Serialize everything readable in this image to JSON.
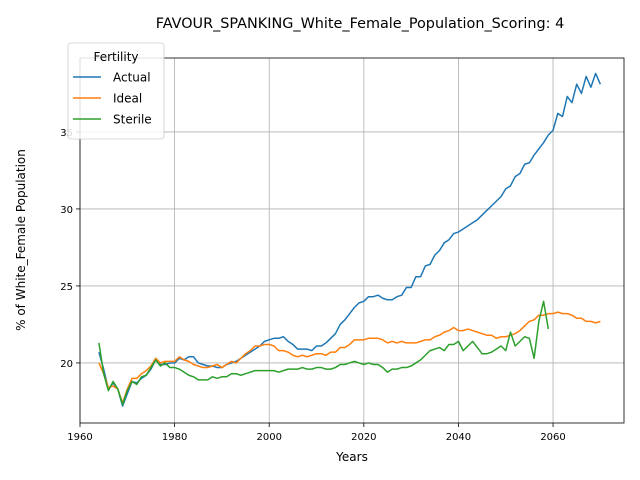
{
  "chart_data": {
    "type": "line",
    "title": "FAVOUR_SPANKING_White_Female_Population_Scoring: 4",
    "xlabel": "Years",
    "ylabel": "% of White_Female Population",
    "xlim": [
      1960,
      2075
    ],
    "ylim": [
      16.1,
      39.8
    ],
    "xticks": [
      1960,
      1980,
      2000,
      2020,
      2040,
      2060
    ],
    "yticks": [
      20,
      25,
      30,
      35
    ],
    "grid": true,
    "legend": {
      "title": "Fertility",
      "position": "upper-left"
    },
    "series": [
      {
        "name": "Actual",
        "color": "#1f77b4",
        "points": [
          [
            1964,
            20.7
          ],
          [
            1965,
            19.6
          ],
          [
            1966,
            18.3
          ],
          [
            1967,
            18.7
          ],
          [
            1968,
            18.3
          ],
          [
            1969,
            17.2
          ],
          [
            1970,
            18.0
          ],
          [
            1971,
            18.8
          ],
          [
            1972,
            18.7
          ],
          [
            1973,
            19.0
          ],
          [
            1974,
            19.2
          ],
          [
            1975,
            19.6
          ],
          [
            1976,
            20.2
          ],
          [
            1977,
            19.9
          ],
          [
            1978,
            19.9
          ],
          [
            1979,
            20.0
          ],
          [
            1980,
            20.0
          ],
          [
            1981,
            20.3
          ],
          [
            1982,
            20.2
          ],
          [
            1983,
            20.4
          ],
          [
            1984,
            20.4
          ],
          [
            1985,
            20.0
          ],
          [
            1986,
            19.9
          ],
          [
            1987,
            19.8
          ],
          [
            1988,
            19.8
          ],
          [
            1989,
            19.7
          ],
          [
            1990,
            19.7
          ],
          [
            1991,
            19.9
          ],
          [
            1992,
            20.0
          ],
          [
            1993,
            20.1
          ],
          [
            1994,
            20.3
          ],
          [
            1995,
            20.5
          ],
          [
            1996,
            20.7
          ],
          [
            1997,
            20.9
          ],
          [
            1998,
            21.1
          ],
          [
            1999,
            21.4
          ],
          [
            2000,
            21.5
          ],
          [
            2001,
            21.6
          ],
          [
            2002,
            21.6
          ],
          [
            2003,
            21.7
          ],
          [
            2004,
            21.4
          ],
          [
            2005,
            21.2
          ],
          [
            2006,
            20.9
          ],
          [
            2007,
            20.9
          ],
          [
            2008,
            20.9
          ],
          [
            2009,
            20.8
          ],
          [
            2010,
            21.1
          ],
          [
            2011,
            21.1
          ],
          [
            2012,
            21.3
          ],
          [
            2013,
            21.6
          ],
          [
            2014,
            21.9
          ],
          [
            2015,
            22.5
          ],
          [
            2016,
            22.8
          ],
          [
            2017,
            23.2
          ],
          [
            2018,
            23.6
          ],
          [
            2019,
            23.9
          ],
          [
            2020,
            24.0
          ],
          [
            2021,
            24.3
          ],
          [
            2022,
            24.3
          ],
          [
            2023,
            24.4
          ],
          [
            2024,
            24.2
          ],
          [
            2025,
            24.1
          ],
          [
            2026,
            24.1
          ],
          [
            2027,
            24.3
          ],
          [
            2028,
            24.4
          ],
          [
            2029,
            24.9
          ],
          [
            2030,
            24.9
          ],
          [
            2031,
            25.6
          ],
          [
            2032,
            25.6
          ],
          [
            2033,
            26.3
          ],
          [
            2034,
            26.4
          ],
          [
            2035,
            27.0
          ],
          [
            2036,
            27.3
          ],
          [
            2037,
            27.8
          ],
          [
            2038,
            28.0
          ],
          [
            2039,
            28.4
          ],
          [
            2040,
            28.5
          ],
          [
            2041,
            28.7
          ],
          [
            2042,
            28.9
          ],
          [
            2043,
            29.1
          ],
          [
            2044,
            29.3
          ],
          [
            2045,
            29.6
          ],
          [
            2046,
            29.9
          ],
          [
            2047,
            30.2
          ],
          [
            2048,
            30.5
          ],
          [
            2049,
            30.8
          ],
          [
            2050,
            31.3
          ],
          [
            2051,
            31.5
          ],
          [
            2052,
            32.1
          ],
          [
            2053,
            32.3
          ],
          [
            2054,
            32.9
          ],
          [
            2055,
            33.0
          ],
          [
            2056,
            33.5
          ],
          [
            2057,
            33.9
          ],
          [
            2058,
            34.3
          ],
          [
            2059,
            34.8
          ],
          [
            2060,
            35.1
          ],
          [
            2061,
            36.2
          ],
          [
            2062,
            36.0
          ],
          [
            2063,
            37.3
          ],
          [
            2064,
            36.9
          ],
          [
            2065,
            38.1
          ],
          [
            2066,
            37.5
          ],
          [
            2067,
            38.6
          ],
          [
            2068,
            37.9
          ],
          [
            2069,
            38.8
          ],
          [
            2070,
            38.1
          ]
        ]
      },
      {
        "name": "Ideal",
        "color": "#ff7f0e",
        "points": [
          [
            1964,
            20.0
          ],
          [
            1965,
            19.3
          ],
          [
            1966,
            18.4
          ],
          [
            1967,
            18.5
          ],
          [
            1968,
            18.3
          ],
          [
            1969,
            17.4
          ],
          [
            1970,
            18.3
          ],
          [
            1971,
            19.0
          ],
          [
            1972,
            19.0
          ],
          [
            1973,
            19.3
          ],
          [
            1974,
            19.5
          ],
          [
            1975,
            19.8
          ],
          [
            1976,
            20.3
          ],
          [
            1977,
            20.0
          ],
          [
            1978,
            20.1
          ],
          [
            1979,
            20.1
          ],
          [
            1980,
            20.1
          ],
          [
            1981,
            20.4
          ],
          [
            1982,
            20.2
          ],
          [
            1983,
            20.1
          ],
          [
            1984,
            19.9
          ],
          [
            1985,
            19.8
          ],
          [
            1986,
            19.7
          ],
          [
            1987,
            19.7
          ],
          [
            1988,
            19.8
          ],
          [
            1989,
            19.9
          ],
          [
            1990,
            19.7
          ],
          [
            1991,
            19.9
          ],
          [
            1992,
            20.1
          ],
          [
            1993,
            20.0
          ],
          [
            1994,
            20.3
          ],
          [
            1995,
            20.6
          ],
          [
            1996,
            20.8
          ],
          [
            1997,
            21.1
          ],
          [
            1998,
            21.1
          ],
          [
            1999,
            21.2
          ],
          [
            2000,
            21.2
          ],
          [
            2001,
            21.1
          ],
          [
            2002,
            20.8
          ],
          [
            2003,
            20.8
          ],
          [
            2004,
            20.7
          ],
          [
            2005,
            20.5
          ],
          [
            2006,
            20.4
          ],
          [
            2007,
            20.5
          ],
          [
            2008,
            20.4
          ],
          [
            2009,
            20.5
          ],
          [
            2010,
            20.6
          ],
          [
            2011,
            20.6
          ],
          [
            2012,
            20.5
          ],
          [
            2013,
            20.7
          ],
          [
            2014,
            20.7
          ],
          [
            2015,
            21.0
          ],
          [
            2016,
            21.0
          ],
          [
            2017,
            21.2
          ],
          [
            2018,
            21.5
          ],
          [
            2019,
            21.5
          ],
          [
            2020,
            21.5
          ],
          [
            2021,
            21.6
          ],
          [
            2022,
            21.6
          ],
          [
            2023,
            21.6
          ],
          [
            2024,
            21.5
          ],
          [
            2025,
            21.3
          ],
          [
            2026,
            21.4
          ],
          [
            2027,
            21.3
          ],
          [
            2028,
            21.4
          ],
          [
            2029,
            21.3
          ],
          [
            2030,
            21.3
          ],
          [
            2031,
            21.3
          ],
          [
            2032,
            21.4
          ],
          [
            2033,
            21.5
          ],
          [
            2034,
            21.5
          ],
          [
            2035,
            21.7
          ],
          [
            2036,
            21.8
          ],
          [
            2037,
            22.0
          ],
          [
            2038,
            22.1
          ],
          [
            2039,
            22.3
          ],
          [
            2040,
            22.1
          ],
          [
            2041,
            22.1
          ],
          [
            2042,
            22.2
          ],
          [
            2043,
            22.1
          ],
          [
            2044,
            22.0
          ],
          [
            2045,
            21.9
          ],
          [
            2046,
            21.8
          ],
          [
            2047,
            21.8
          ],
          [
            2048,
            21.6
          ],
          [
            2049,
            21.7
          ],
          [
            2050,
            21.7
          ],
          [
            2051,
            21.8
          ],
          [
            2052,
            21.9
          ],
          [
            2053,
            22.1
          ],
          [
            2054,
            22.4
          ],
          [
            2055,
            22.7
          ],
          [
            2056,
            22.8
          ],
          [
            2057,
            23.1
          ],
          [
            2058,
            23.1
          ],
          [
            2059,
            23.2
          ],
          [
            2060,
            23.2
          ],
          [
            2061,
            23.3
          ],
          [
            2062,
            23.2
          ],
          [
            2063,
            23.2
          ],
          [
            2064,
            23.1
          ],
          [
            2065,
            22.9
          ],
          [
            2066,
            22.9
          ],
          [
            2067,
            22.7
          ],
          [
            2068,
            22.7
          ],
          [
            2069,
            22.6
          ],
          [
            2070,
            22.7
          ]
        ]
      },
      {
        "name": "Sterile",
        "color": "#2ca02c",
        "points": [
          [
            1964,
            21.3
          ],
          [
            1965,
            19.3
          ],
          [
            1966,
            18.2
          ],
          [
            1967,
            18.8
          ],
          [
            1968,
            18.3
          ],
          [
            1969,
            17.3
          ],
          [
            1970,
            18.2
          ],
          [
            1971,
            18.8
          ],
          [
            1972,
            18.6
          ],
          [
            1973,
            19.1
          ],
          [
            1974,
            19.2
          ],
          [
            1975,
            19.7
          ],
          [
            1976,
            20.2
          ],
          [
            1977,
            19.8
          ],
          [
            1978,
            20.0
          ],
          [
            1979,
            19.7
          ],
          [
            1980,
            19.7
          ],
          [
            1981,
            19.6
          ],
          [
            1982,
            19.4
          ],
          [
            1983,
            19.2
          ],
          [
            1984,
            19.1
          ],
          [
            1985,
            18.9
          ],
          [
            1986,
            18.9
          ],
          [
            1987,
            18.9
          ],
          [
            1988,
            19.1
          ],
          [
            1989,
            19.0
          ],
          [
            1990,
            19.1
          ],
          [
            1991,
            19.1
          ],
          [
            1992,
            19.3
          ],
          [
            1993,
            19.3
          ],
          [
            1994,
            19.2
          ],
          [
            1995,
            19.3
          ],
          [
            1996,
            19.4
          ],
          [
            1997,
            19.5
          ],
          [
            1998,
            19.5
          ],
          [
            1999,
            19.5
          ],
          [
            2000,
            19.5
          ],
          [
            2001,
            19.5
          ],
          [
            2002,
            19.4
          ],
          [
            2003,
            19.5
          ],
          [
            2004,
            19.6
          ],
          [
            2005,
            19.6
          ],
          [
            2006,
            19.6
          ],
          [
            2007,
            19.7
          ],
          [
            2008,
            19.6
          ],
          [
            2009,
            19.6
          ],
          [
            2010,
            19.7
          ],
          [
            2011,
            19.7
          ],
          [
            2012,
            19.6
          ],
          [
            2013,
            19.6
          ],
          [
            2014,
            19.7
          ],
          [
            2015,
            19.9
          ],
          [
            2016,
            19.9
          ],
          [
            2017,
            20.0
          ],
          [
            2018,
            20.1
          ],
          [
            2019,
            20.0
          ],
          [
            2020,
            19.9
          ],
          [
            2021,
            20.0
          ],
          [
            2022,
            19.9
          ],
          [
            2023,
            19.9
          ],
          [
            2024,
            19.7
          ],
          [
            2025,
            19.4
          ],
          [
            2026,
            19.6
          ],
          [
            2027,
            19.6
          ],
          [
            2028,
            19.7
          ],
          [
            2029,
            19.7
          ],
          [
            2030,
            19.8
          ],
          [
            2031,
            20.0
          ],
          [
            2032,
            20.2
          ],
          [
            2033,
            20.5
          ],
          [
            2034,
            20.8
          ],
          [
            2035,
            20.9
          ],
          [
            2036,
            21.0
          ],
          [
            2037,
            20.8
          ],
          [
            2038,
            21.2
          ],
          [
            2039,
            21.2
          ],
          [
            2040,
            21.4
          ],
          [
            2041,
            20.8
          ],
          [
            2042,
            21.1
          ],
          [
            2043,
            21.4
          ],
          [
            2044,
            21.0
          ],
          [
            2045,
            20.6
          ],
          [
            2046,
            20.6
          ],
          [
            2047,
            20.7
          ],
          [
            2048,
            20.9
          ],
          [
            2049,
            21.1
          ],
          [
            2050,
            20.8
          ],
          [
            2051,
            22.0
          ],
          [
            2052,
            21.1
          ],
          [
            2053,
            21.4
          ],
          [
            2054,
            21.7
          ],
          [
            2055,
            21.6
          ],
          [
            2056,
            20.3
          ],
          [
            2057,
            22.7
          ],
          [
            2058,
            24.0
          ],
          [
            2059,
            22.2
          ]
        ]
      }
    ]
  }
}
